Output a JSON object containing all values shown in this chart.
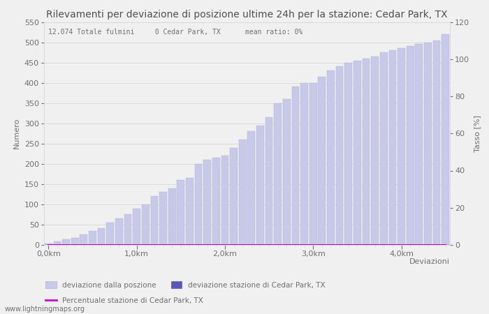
{
  "title": "Rilevamenti per deviazione di posizione ultime 24h per la stazione: Cedar Park, TX",
  "annotation": "12.074 Totale fulmini     0 Cedar Park, TX      mean ratio: 0%",
  "xlabel": "Deviazioni",
  "ylabel_left": "Numero",
  "ylabel_right": "Tasso [%]",
  "ylim_left": [
    0,
    550
  ],
  "ylim_right": [
    0,
    120
  ],
  "yticks_left": [
    0,
    50,
    100,
    150,
    200,
    250,
    300,
    350,
    400,
    450,
    500,
    550
  ],
  "yticks_right": [
    0,
    20,
    40,
    60,
    80,
    100,
    120
  ],
  "n_bars": 46,
  "bar_values_total": [
    3,
    8,
    13,
    18,
    25,
    35,
    42,
    55,
    65,
    75,
    90,
    100,
    120,
    130,
    140,
    160,
    165,
    200,
    210,
    215,
    220,
    240,
    260,
    280,
    295,
    315,
    350,
    360,
    390,
    400,
    400,
    415,
    430,
    440,
    450,
    455,
    460,
    465,
    475,
    480,
    485,
    490,
    495,
    500,
    505,
    520
  ],
  "bar_values_station": [
    0,
    0,
    0,
    0,
    0,
    0,
    0,
    0,
    0,
    0,
    0,
    0,
    0,
    0,
    0,
    0,
    0,
    0,
    0,
    0,
    0,
    0,
    0,
    0,
    0,
    0,
    0,
    0,
    0,
    0,
    0,
    0,
    0,
    0,
    0,
    0,
    0,
    0,
    0,
    0,
    0,
    0,
    0,
    0,
    0,
    0
  ],
  "ratio_values": [
    0,
    0,
    0,
    0,
    0,
    0,
    0,
    0,
    0,
    0,
    0,
    0,
    0,
    0,
    0,
    0,
    0,
    0,
    0,
    0,
    0,
    0,
    0,
    0,
    0,
    0,
    0,
    0,
    0,
    0,
    0,
    0,
    0,
    0,
    0,
    0,
    0,
    0,
    0,
    0,
    0,
    0,
    0,
    0,
    0,
    0
  ],
  "xtick_positions": [
    0,
    10,
    20,
    30,
    40
  ],
  "xtick_labels": [
    "0,0km",
    "1,0km",
    "2,0km",
    "3,0km",
    "4,0km"
  ],
  "color_total": "#c8c8e8",
  "color_total_edge": "#b0b0d8",
  "color_station": "#5858b8",
  "color_ratio": "#cc00cc",
  "background_color": "#f0f0f0",
  "plot_bg_color": "#f0f0f0",
  "grid_color": "#d8d8d8",
  "text_color": "#707070",
  "title_color": "#505050",
  "title_fontsize": 10,
  "label_fontsize": 8,
  "tick_fontsize": 8,
  "watermark": "www.lightningmaps.org",
  "legend_items": [
    {
      "label": "deviazione dalla poszione",
      "color": "#c8c8e8",
      "edge": "#b0b0d8",
      "type": "bar"
    },
    {
      "label": "deviazione stazione di Cedar Park, TX",
      "color": "#5858b8",
      "edge": "#5858b8",
      "type": "bar"
    },
    {
      "label": "Percentuale stazione di Cedar Park, TX",
      "color": "#cc00cc",
      "type": "line"
    }
  ]
}
